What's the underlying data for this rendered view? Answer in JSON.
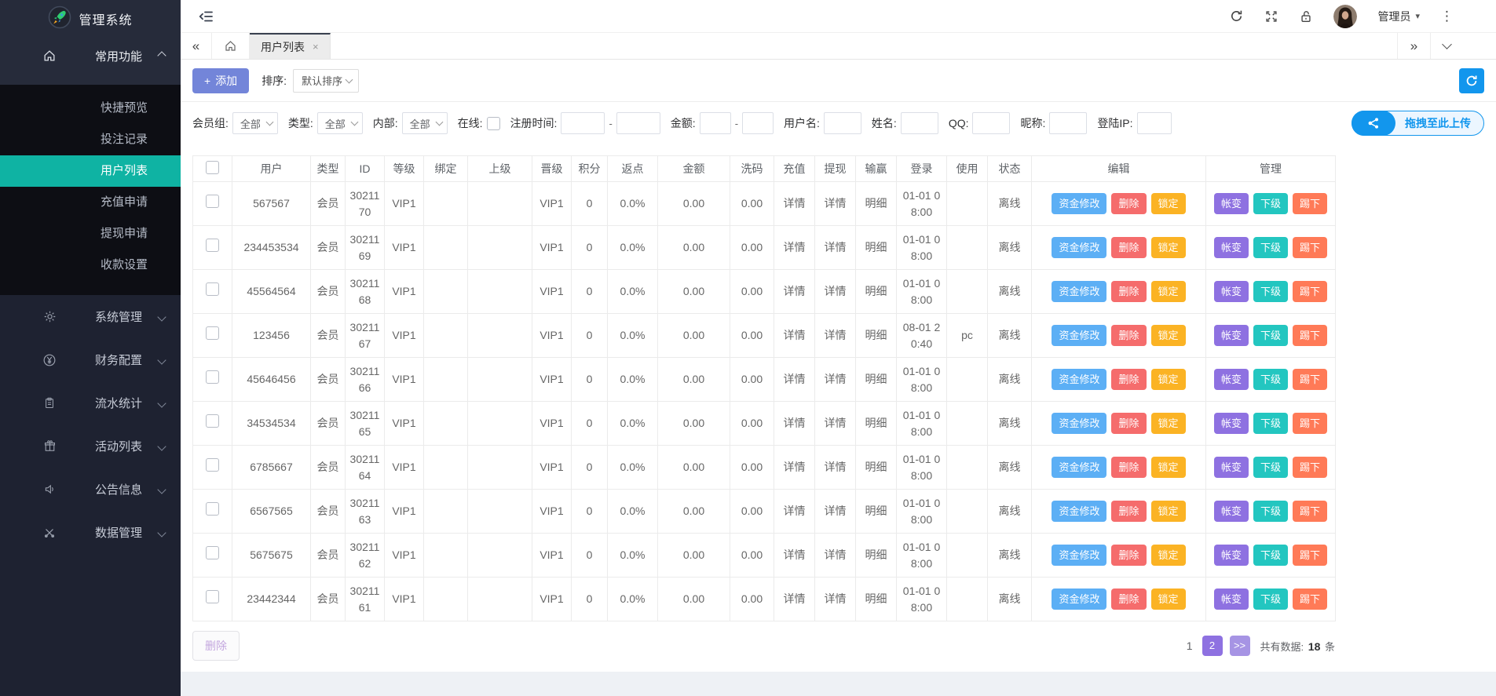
{
  "app": {
    "title": "管理系统"
  },
  "colors": {
    "sidebar_bg": "#1e2231",
    "sidebar_top_bg": "#262b3a",
    "submenu_bg": "#0d0e14",
    "active_teal": "#0fb3a3",
    "accent_periwinkle": "#7385d9",
    "accent_blue": "#1296ed",
    "btn_fund": "#5caff5",
    "btn_delete": "#f56c6c",
    "btn_lock": "#fbb324",
    "btn_account": "#8e71e1",
    "btn_sub": "#23c6c0",
    "btn_kick": "#ff7a57",
    "pager_active": "#8e71e1"
  },
  "glyphs": {
    "double_left": "«",
    "double_right": "»",
    "close": "×",
    "caret_down": "▾",
    "dots": "⋮",
    "plus": "+"
  },
  "sidebar": {
    "logo_title": "管理系统",
    "groups": [
      {
        "label": "常用功能",
        "icon": "home-icon",
        "expanded": true,
        "items": [
          "快捷预览",
          "投注记录",
          "用户列表",
          "充值申请",
          "提现申请",
          "收款设置"
        ],
        "active_item": "用户列表"
      },
      {
        "label": "系统管理",
        "icon": "gear-icon"
      },
      {
        "label": "财务配置",
        "icon": "yen-icon"
      },
      {
        "label": "流水统计",
        "icon": "clipboard-icon"
      },
      {
        "label": "活动列表",
        "icon": "gift-icon"
      },
      {
        "label": "公告信息",
        "icon": "speaker-icon"
      },
      {
        "label": "数据管理",
        "icon": "tools-icon"
      }
    ]
  },
  "header": {
    "admin_label": "管理员"
  },
  "tabs": {
    "active_label": "用户列表"
  },
  "toolbar": {
    "add_label": "添加",
    "sort_label": "排序:",
    "sort_value": "默认排序"
  },
  "filters": {
    "member_group_label": "会员组:",
    "member_group_value": "全部",
    "type_label": "类型:",
    "type_value": "全部",
    "internal_label": "内部:",
    "internal_value": "全部",
    "online_label": "在线:",
    "reg_time_label": "注册时间:",
    "amount_label": "金额:",
    "username_label": "用户名:",
    "name_label": "姓名:",
    "qq_label": "QQ:",
    "nickname_label": "昵称:",
    "login_ip_label": "登陆IP:",
    "range_separator": "-",
    "upload_label": "拖拽至此上传"
  },
  "table": {
    "headers": [
      "用户",
      "类型",
      "ID",
      "等级",
      "绑定",
      "上级",
      "晋级",
      "积分",
      "返点",
      "金额",
      "洗码",
      "充值",
      "提现",
      "输赢",
      "登录",
      "使用",
      "状态",
      "编辑",
      "管理"
    ],
    "edit_buttons": [
      "资金修改",
      "删除",
      "锁定"
    ],
    "manage_buttons": [
      "帐变",
      "下级",
      "踢下"
    ],
    "rows": [
      {
        "user": "567567",
        "type": "会员",
        "id": "3021170",
        "level": "VIP1",
        "bind": "",
        "parent": "",
        "promote": "VIP1",
        "points": "0",
        "rebate": "0.0%",
        "amount": "0.00",
        "wash": "0.00",
        "recharge": "详情",
        "withdraw": "详情",
        "winlose": "明细",
        "login": "01-01 08:00",
        "device": "",
        "status": "离线"
      },
      {
        "user": "234453534",
        "type": "会员",
        "id": "3021169",
        "level": "VIP1",
        "bind": "",
        "parent": "",
        "promote": "VIP1",
        "points": "0",
        "rebate": "0.0%",
        "amount": "0.00",
        "wash": "0.00",
        "recharge": "详情",
        "withdraw": "详情",
        "winlose": "明细",
        "login": "01-01 08:00",
        "device": "",
        "status": "离线"
      },
      {
        "user": "45564564",
        "type": "会员",
        "id": "3021168",
        "level": "VIP1",
        "bind": "",
        "parent": "",
        "promote": "VIP1",
        "points": "0",
        "rebate": "0.0%",
        "amount": "0.00",
        "wash": "0.00",
        "recharge": "详情",
        "withdraw": "详情",
        "winlose": "明细",
        "login": "01-01 08:00",
        "device": "",
        "status": "离线"
      },
      {
        "user": "123456",
        "type": "会员",
        "id": "3021167",
        "level": "VIP1",
        "bind": "",
        "parent": "",
        "promote": "VIP1",
        "points": "0",
        "rebate": "0.0%",
        "amount": "0.00",
        "wash": "0.00",
        "recharge": "详情",
        "withdraw": "详情",
        "winlose": "明细",
        "login": "08-01 20:40",
        "device": "pc",
        "status": "离线"
      },
      {
        "user": "45646456",
        "type": "会员",
        "id": "3021166",
        "level": "VIP1",
        "bind": "",
        "parent": "",
        "promote": "VIP1",
        "points": "0",
        "rebate": "0.0%",
        "amount": "0.00",
        "wash": "0.00",
        "recharge": "详情",
        "withdraw": "详情",
        "winlose": "明细",
        "login": "01-01 08:00",
        "device": "",
        "status": "离线"
      },
      {
        "user": "34534534",
        "type": "会员",
        "id": "3021165",
        "level": "VIP1",
        "bind": "",
        "parent": "",
        "promote": "VIP1",
        "points": "0",
        "rebate": "0.0%",
        "amount": "0.00",
        "wash": "0.00",
        "recharge": "详情",
        "withdraw": "详情",
        "winlose": "明细",
        "login": "01-01 08:00",
        "device": "",
        "status": "离线"
      },
      {
        "user": "6785667",
        "type": "会员",
        "id": "3021164",
        "level": "VIP1",
        "bind": "",
        "parent": "",
        "promote": "VIP1",
        "points": "0",
        "rebate": "0.0%",
        "amount": "0.00",
        "wash": "0.00",
        "recharge": "详情",
        "withdraw": "详情",
        "winlose": "明细",
        "login": "01-01 08:00",
        "device": "",
        "status": "离线"
      },
      {
        "user": "6567565",
        "type": "会员",
        "id": "3021163",
        "level": "VIP1",
        "bind": "",
        "parent": "",
        "promote": "VIP1",
        "points": "0",
        "rebate": "0.0%",
        "amount": "0.00",
        "wash": "0.00",
        "recharge": "详情",
        "withdraw": "详情",
        "winlose": "明细",
        "login": "01-01 08:00",
        "device": "",
        "status": "离线"
      },
      {
        "user": "5675675",
        "type": "会员",
        "id": "3021162",
        "level": "VIP1",
        "bind": "",
        "parent": "",
        "promote": "VIP1",
        "points": "0",
        "rebate": "0.0%",
        "amount": "0.00",
        "wash": "0.00",
        "recharge": "详情",
        "withdraw": "详情",
        "winlose": "明细",
        "login": "01-01 08:00",
        "device": "",
        "status": "离线"
      },
      {
        "user": "23442344",
        "type": "会员",
        "id": "3021161",
        "level": "VIP1",
        "bind": "",
        "parent": "",
        "promote": "VIP1",
        "points": "0",
        "rebate": "0.0%",
        "amount": "0.00",
        "wash": "0.00",
        "recharge": "详情",
        "withdraw": "详情",
        "winlose": "明细",
        "login": "01-01 08:00",
        "device": "",
        "status": "离线"
      }
    ]
  },
  "pagination": {
    "delete_label": "删除",
    "page_plain": "1",
    "page_box": "2",
    "page_next": ">>",
    "total_label": "共有数据:",
    "total_count": "18",
    "total_unit": "条"
  }
}
